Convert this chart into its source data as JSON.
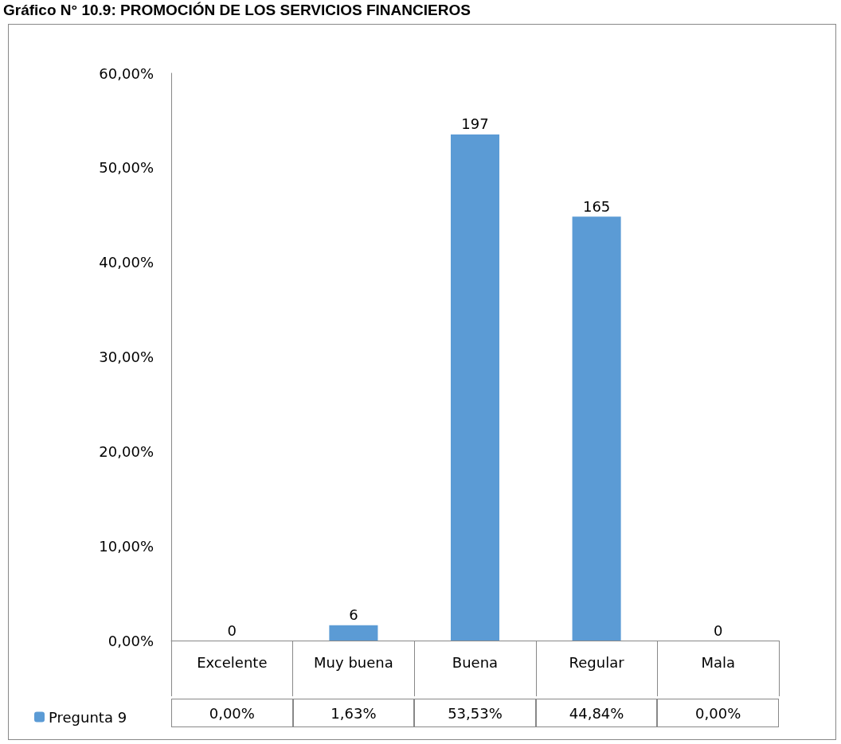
{
  "chart_data": {
    "type": "bar",
    "title": "Gráfico N° 10.9: PROMOCIÓN DE LOS SERVICIOS FINANCIEROS",
    "categories": [
      "Excelente",
      "Muy buena",
      "Buena",
      "Regular",
      "Mala"
    ],
    "series": [
      {
        "name": "Pregunta 9",
        "color": "#5b9bd5",
        "values": [
          0,
          1.63,
          53.53,
          44.84,
          0
        ],
        "value_labels": [
          "0,00%",
          "1,63%",
          "53,53%",
          "44,84%",
          "0,00%"
        ]
      }
    ],
    "ylim": [
      0,
      60
    ],
    "yticks": [
      {
        "value": 0,
        "label": "0,00%"
      },
      {
        "value": 10,
        "label": "10,00%"
      },
      {
        "value": 20,
        "label": "20,00%"
      },
      {
        "value": 30,
        "label": "30,00%"
      },
      {
        "value": 40,
        "label": "40,00%"
      },
      {
        "value": 50,
        "label": "50,00%"
      },
      {
        "value": 60,
        "label": "60,00%"
      }
    ],
    "annotations": [
      {
        "text": "0",
        "x": "Excelente",
        "y": 0
      },
      {
        "text": "6",
        "x": "Muy buena",
        "y": 1.63
      },
      {
        "text": "197",
        "x": "Buena",
        "y": 53.53
      },
      {
        "text": "165",
        "x": "Regular",
        "y": 44.84
      },
      {
        "text": "0",
        "x": "Mala",
        "y": 0
      }
    ],
    "grid": false,
    "legend": "bottom left"
  }
}
